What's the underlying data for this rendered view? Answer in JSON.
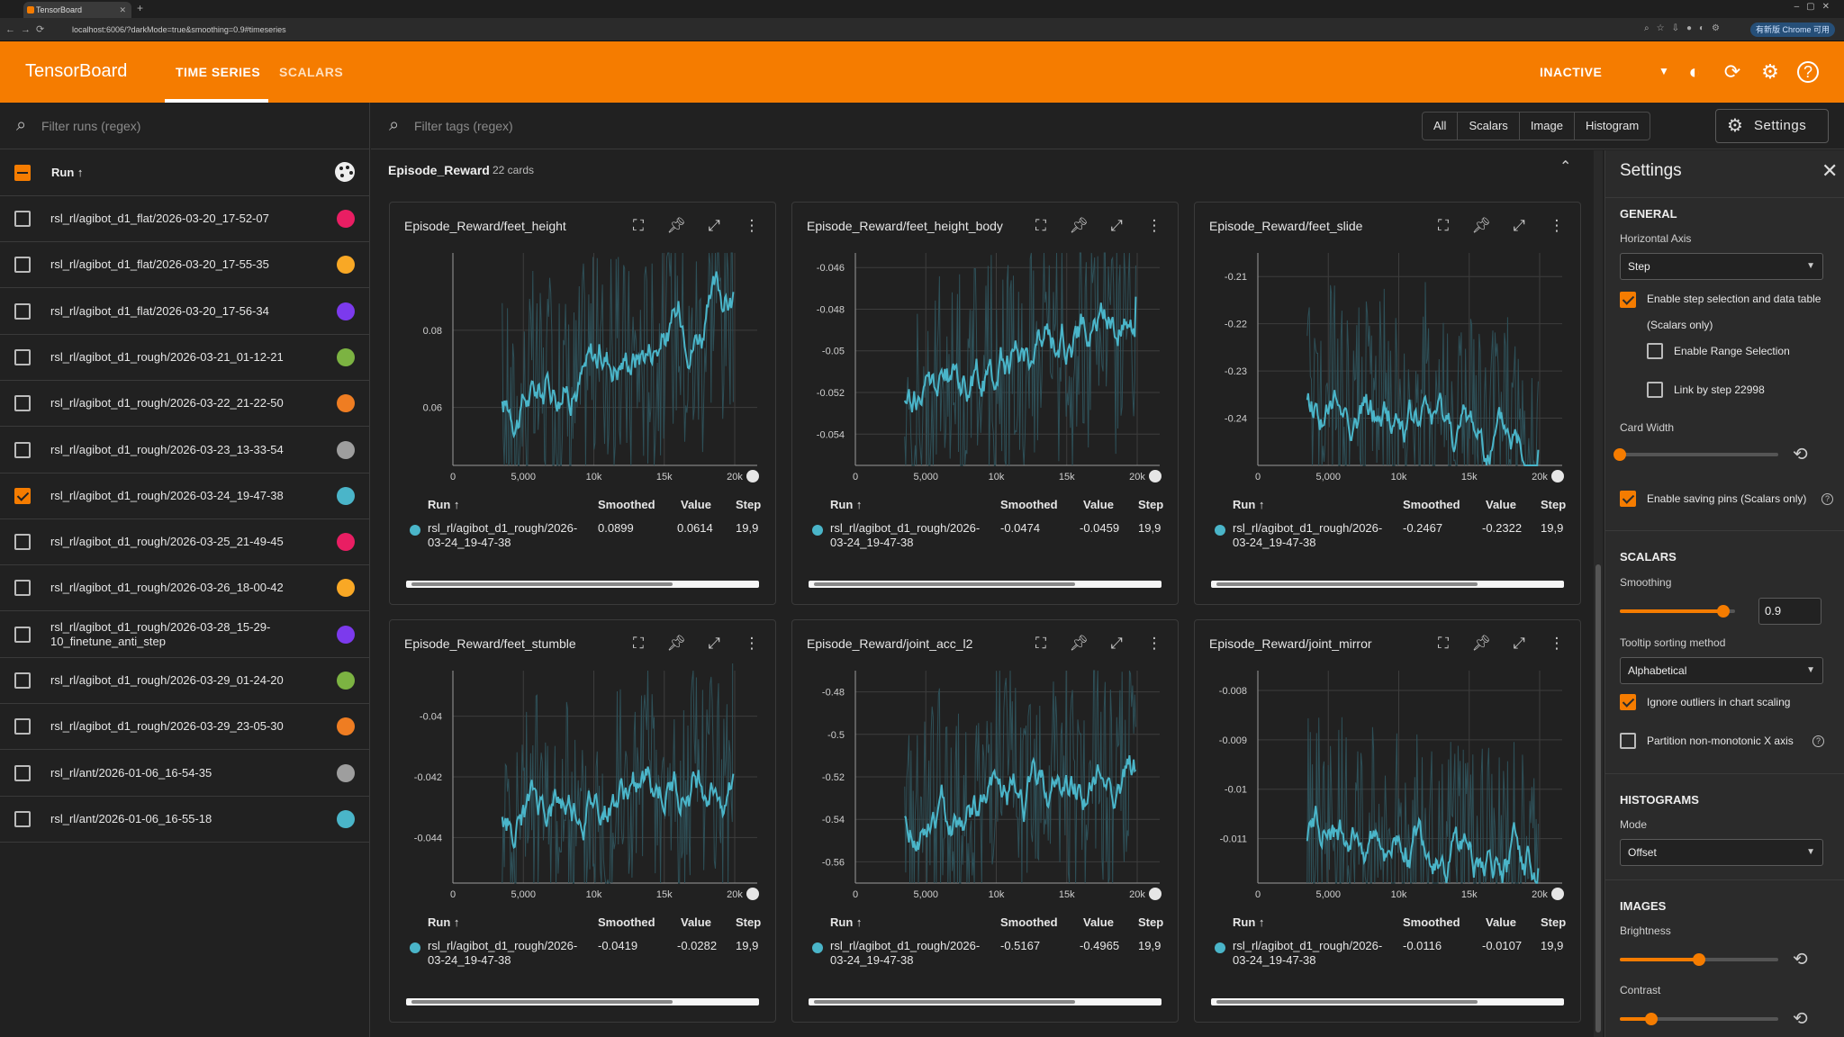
{
  "browser": {
    "tab_title": "TensorBoard",
    "url": "localhost:6006/?darkMode=true&smoothing=0.9#timeseries",
    "update_label": "有新版 Chrome 可用"
  },
  "header": {
    "brand": "TensorBoard",
    "tabs": [
      "TIME SERIES",
      "SCALARS"
    ],
    "status": "INACTIVE"
  },
  "runs": {
    "filter_placeholder": "Filter runs (regex)",
    "header_label": "Run ↑",
    "items": [
      {
        "name": "rsl_rl/agibot_d1_flat/2026-03-20_17-52-07",
        "color": "#e91e63",
        "checked": false
      },
      {
        "name": "rsl_rl/agibot_d1_flat/2026-03-20_17-55-35",
        "color": "#f9a825",
        "checked": false
      },
      {
        "name": "rsl_rl/agibot_d1_flat/2026-03-20_17-56-34",
        "color": "#7c3aed",
        "checked": false
      },
      {
        "name": "rsl_rl/agibot_d1_rough/2026-03-21_01-12-21",
        "color": "#7cb342",
        "checked": false
      },
      {
        "name": "rsl_rl/agibot_d1_rough/2026-03-22_21-22-50",
        "color": "#ef7d22",
        "checked": false
      },
      {
        "name": "rsl_rl/agibot_d1_rough/2026-03-23_13-33-54",
        "color": "#9e9e9e",
        "checked": false
      },
      {
        "name": "rsl_rl/agibot_d1_rough/2026-03-24_19-47-38",
        "color": "#4ab5c9",
        "checked": true
      },
      {
        "name": "rsl_rl/agibot_d1_rough/2026-03-25_21-49-45",
        "color": "#e91e63",
        "checked": false
      },
      {
        "name": "rsl_rl/agibot_d1_rough/2026-03-26_18-00-42",
        "color": "#f9a825",
        "checked": false
      },
      {
        "name": "rsl_rl/agibot_d1_rough/2026-03-28_15-29-10_finetune_anti_step",
        "color": "#7c3aed",
        "checked": false
      },
      {
        "name": "rsl_rl/agibot_d1_rough/2026-03-29_01-24-20",
        "color": "#7cb342",
        "checked": false
      },
      {
        "name": "rsl_rl/agibot_d1_rough/2026-03-29_23-05-30",
        "color": "#ef7d22",
        "checked": false
      },
      {
        "name": "rsl_rl/ant/2026-01-06_16-54-35",
        "color": "#9e9e9e",
        "checked": false
      },
      {
        "name": "rsl_rl/ant/2026-01-06_16-55-18",
        "color": "#4ab5c9",
        "checked": false
      }
    ]
  },
  "tags": {
    "filter_placeholder": "Filter tags (regex)",
    "filters": [
      "All",
      "Scalars",
      "Image",
      "Histogram"
    ],
    "settings_label": "Settings"
  },
  "group": {
    "title": "Episode_Reward",
    "count": "22 cards"
  },
  "legend_headers": {
    "run": "Run ↑",
    "smoothed": "Smoothed",
    "value": "Value",
    "step": "Step"
  },
  "legend_run": {
    "line1": "rsl_rl/agibot_d1_rough/2026-",
    "line2": "03-24_19-47-38"
  },
  "cards": [
    {
      "title": "Episode_Reward/feet_height",
      "smoothed": "0.0899",
      "value": "0.0614",
      "step": "19,9"
    },
    {
      "title": "Episode_Reward/feet_height_body",
      "smoothed": "-0.0474",
      "value": "-0.0459",
      "step": "19,9"
    },
    {
      "title": "Episode_Reward/feet_slide",
      "smoothed": "-0.2467",
      "value": "-0.2322",
      "step": "19,9"
    },
    {
      "title": "Episode_Reward/feet_stumble",
      "smoothed": "-0.0419",
      "value": "-0.0282",
      "step": "19,9"
    },
    {
      "title": "Episode_Reward/joint_acc_l2",
      "smoothed": "-0.5167",
      "value": "-0.4965",
      "step": "19,9"
    },
    {
      "title": "Episode_Reward/joint_mirror",
      "smoothed": "-0.0116",
      "value": "-0.0107",
      "step": "19,9"
    }
  ],
  "chart_data": [
    {
      "type": "line",
      "title": "Episode_Reward/feet_height",
      "xticks": [
        "0",
        "5,000",
        "10k",
        "15k",
        "20k"
      ],
      "yticks": [
        "0.08",
        "0.06"
      ],
      "xlim": [
        0,
        20000
      ],
      "ylim": [
        0.045,
        0.1
      ],
      "series": [
        {
          "name": "rsl_rl/agibot_d1_rough/2026-03-24_19-47-38",
          "x_end": 19900,
          "last_smoothed": 0.0899,
          "last_value": 0.0614
        }
      ]
    },
    {
      "type": "line",
      "title": "Episode_Reward/feet_height_body",
      "xticks": [
        "0",
        "5,000",
        "10k",
        "15k",
        "20k"
      ],
      "yticks": [
        "-0.046",
        "-0.048",
        "-0.05",
        "-0.052",
        "-0.054"
      ],
      "xlim": [
        0,
        20000
      ],
      "ylim": [
        -0.0555,
        -0.0453
      ],
      "series": [
        {
          "name": "rsl_rl/agibot_d1_rough/2026-03-24_19-47-38",
          "x_end": 19900,
          "last_smoothed": -0.0474,
          "last_value": -0.0459
        }
      ]
    },
    {
      "type": "line",
      "title": "Episode_Reward/feet_slide",
      "xticks": [
        "0",
        "5,000",
        "10k",
        "15k",
        "20k"
      ],
      "yticks": [
        "-0.21",
        "-0.22",
        "-0.23",
        "-0.24"
      ],
      "xlim": [
        0,
        20000
      ],
      "ylim": [
        -0.25,
        -0.205
      ],
      "series": [
        {
          "name": "rsl_rl/agibot_d1_rough/2026-03-24_19-47-38",
          "x_end": 19900,
          "last_smoothed": -0.2467,
          "last_value": -0.2322
        }
      ]
    },
    {
      "type": "line",
      "title": "Episode_Reward/feet_stumble",
      "xticks": [
        "0",
        "5,000",
        "10k",
        "15k",
        "20k"
      ],
      "yticks": [
        "-0.04",
        "-0.042",
        "-0.044"
      ],
      "xlim": [
        0,
        20000
      ],
      "ylim": [
        -0.0455,
        -0.0385
      ],
      "series": [
        {
          "name": "rsl_rl/agibot_d1_rough/2026-03-24_19-47-38",
          "x_end": 19900,
          "last_smoothed": -0.0419,
          "last_value": -0.0282
        }
      ]
    },
    {
      "type": "line",
      "title": "Episode_Reward/joint_acc_l2",
      "xticks": [
        "0",
        "5,000",
        "10k",
        "15k",
        "20k"
      ],
      "yticks": [
        "-0.48",
        "-0.5",
        "-0.52",
        "-0.54",
        "-0.56"
      ],
      "xlim": [
        0,
        20000
      ],
      "ylim": [
        -0.57,
        -0.47
      ],
      "series": [
        {
          "name": "rsl_rl/agibot_d1_rough/2026-03-24_19-47-38",
          "x_end": 19900,
          "last_smoothed": -0.5167,
          "last_value": -0.4965
        }
      ]
    },
    {
      "type": "line",
      "title": "Episode_Reward/joint_mirror",
      "xticks": [
        "0",
        "5,000",
        "10k",
        "15k",
        "20k"
      ],
      "yticks": [
        "-0.008",
        "-0.009",
        "-0.01",
        "-0.011"
      ],
      "xlim": [
        0,
        20000
      ],
      "ylim": [
        -0.0119,
        -0.0076
      ],
      "series": [
        {
          "name": "rsl_rl/agibot_d1_rough/2026-03-24_19-47-38",
          "x_end": 19900,
          "last_smoothed": -0.0116,
          "last_value": -0.0107
        }
      ]
    }
  ],
  "settings": {
    "title": "Settings",
    "general": {
      "heading": "GENERAL",
      "horizontal_axis_label": "Horizontal Axis",
      "horizontal_axis_value": "Step",
      "step_selection": "Enable step selection and data table",
      "step_selection_note": "(Scalars only)",
      "range_selection": "Enable Range Selection",
      "link_by_step": "Link by step 22998",
      "card_width_label": "Card Width",
      "card_width": 0.0,
      "saving_pins": "Enable saving pins (Scalars only)"
    },
    "scalars": {
      "heading": "SCALARS",
      "smoothing_label": "Smoothing",
      "smoothing_value": "0.9",
      "smoothing": 0.9,
      "tooltip_label": "Tooltip sorting method",
      "tooltip_value": "Alphabetical",
      "ignore_outliers": "Ignore outliers in chart scaling",
      "partition": "Partition non-monotonic X axis"
    },
    "histograms": {
      "heading": "HISTOGRAMS",
      "mode_label": "Mode",
      "mode_value": "Offset"
    },
    "images": {
      "heading": "IMAGES",
      "brightness_label": "Brightness",
      "brightness": 0.5,
      "contrast_label": "Contrast",
      "contrast": 0.2
    }
  }
}
